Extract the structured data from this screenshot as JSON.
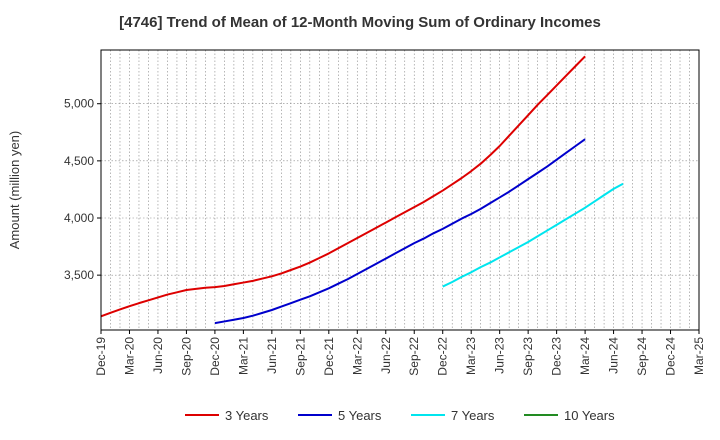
{
  "chart_data": {
    "type": "line",
    "title": "[4746]  Trend of Mean of 12-Month Moving Sum of Ordinary Incomes",
    "xlabel": "",
    "ylabel": "Amount (million yen)",
    "ylim": [
      3020,
      5470
    ],
    "yticks": [
      3500,
      4000,
      4500,
      5000
    ],
    "ytick_labels": [
      "3,500",
      "4,000",
      "4,500",
      "5,000"
    ],
    "x_tick_labels": [
      "Dec-19",
      "Mar-20",
      "Jun-20",
      "Sep-20",
      "Dec-20",
      "Mar-21",
      "Jun-21",
      "Sep-21",
      "Dec-21",
      "Mar-22",
      "Jun-22",
      "Sep-22",
      "Dec-22",
      "Mar-23",
      "Jun-23",
      "Sep-23",
      "Dec-23",
      "Mar-24",
      "Jun-24",
      "Sep-24",
      "Dec-24",
      "Mar-25"
    ],
    "grid": true,
    "legend_position": "bottom",
    "series": [
      {
        "name": "3 Years",
        "color": "#dd0000",
        "start_index": 0,
        "values": [
          3140,
          3170,
          3200,
          3228,
          3255,
          3280,
          3305,
          3330,
          3350,
          3370,
          3380,
          3390,
          3395,
          3405,
          3420,
          3435,
          3450,
          3470,
          3490,
          3515,
          3545,
          3575,
          3610,
          3650,
          3690,
          3735,
          3780,
          3825,
          3870,
          3915,
          3960,
          4005,
          4050,
          4095,
          4140,
          4190,
          4240,
          4295,
          4350,
          4410,
          4475,
          4550,
          4630,
          4720,
          4810,
          4900,
          4990,
          5075,
          5160,
          5245,
          5330,
          5415
        ]
      },
      {
        "name": "5 Years",
        "color": "#0000cc",
        "start_index": 12,
        "values": [
          3080,
          3095,
          3110,
          3125,
          3145,
          3170,
          3195,
          3225,
          3255,
          3285,
          3315,
          3350,
          3385,
          3425,
          3465,
          3510,
          3555,
          3600,
          3645,
          3690,
          3735,
          3780,
          3820,
          3865,
          3905,
          3950,
          3995,
          4035,
          4080,
          4130,
          4180,
          4230,
          4285,
          4340,
          4395,
          4450,
          4510,
          4570,
          4630,
          4690
        ]
      },
      {
        "name": "7 Years",
        "color": "#00e5ee",
        "start_index": 36,
        "values": [
          3400,
          3440,
          3485,
          3525,
          3570,
          3610,
          3655,
          3700,
          3745,
          3790,
          3840,
          3890,
          3940,
          3990,
          4040,
          4090,
          4145,
          4200,
          4255,
          4300
        ]
      },
      {
        "name": "10 Years",
        "color": "#228b22",
        "start_index": 0,
        "values": []
      }
    ]
  }
}
